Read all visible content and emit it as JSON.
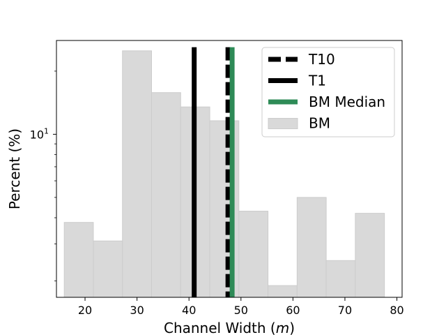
{
  "chart_data": {
    "type": "bar",
    "xlabel_prefix": "Channel Width (",
    "xlabel_unit": "m",
    "xlabel_suffix": ")",
    "ylabel": "Percent (%)",
    "yscale": "log",
    "xlim": [
      14.5,
      81
    ],
    "ylim": [
      1.67,
      28
    ],
    "x_ticks": [
      20,
      30,
      40,
      50,
      60,
      70,
      80
    ],
    "y_ticks": [
      {
        "value": 10,
        "base": "10",
        "exp": "1"
      }
    ],
    "histogram": {
      "name": "BM",
      "color": "#d9d9d9",
      "edge_color": "#cccccc",
      "bins": [
        {
          "x0": 16.0,
          "x1": 21.6,
          "value": 3.8
        },
        {
          "x0": 21.6,
          "x1": 27.2,
          "value": 3.1
        },
        {
          "x0": 27.2,
          "x1": 32.8,
          "value": 25.0
        },
        {
          "x0": 32.8,
          "x1": 38.4,
          "value": 15.8
        },
        {
          "x0": 38.4,
          "x1": 44.0,
          "value": 13.5
        },
        {
          "x0": 44.0,
          "x1": 49.6,
          "value": 11.6
        },
        {
          "x0": 49.6,
          "x1": 55.2,
          "value": 4.3
        },
        {
          "x0": 55.2,
          "x1": 60.8,
          "value": 1.9
        },
        {
          "x0": 60.8,
          "x1": 66.4,
          "value": 5.0
        },
        {
          "x0": 66.4,
          "x1": 72.0,
          "value": 2.5
        },
        {
          "x0": 72.0,
          "x1": 77.6,
          "value": 4.2
        }
      ]
    },
    "vlines": [
      {
        "name": "T10",
        "x": 47.5,
        "color": "#000000",
        "style": "dashed"
      },
      {
        "name": "T1",
        "x": 41.0,
        "color": "#000000",
        "style": "solid"
      },
      {
        "name": "BM Median",
        "x": 48.3,
        "color": "#2e8b57",
        "style": "solid"
      }
    ],
    "vline_top": 26.0,
    "legend": {
      "placement": "top-right",
      "entries": [
        {
          "label": "T10",
          "kind": "dashed",
          "color": "#000000"
        },
        {
          "label": "T1",
          "kind": "solid",
          "color": "#000000"
        },
        {
          "label": "BM Median",
          "kind": "solid",
          "color": "#2e8b57"
        },
        {
          "label": "BM",
          "kind": "patch",
          "color": "#d9d9d9"
        }
      ]
    },
    "grid": false
  }
}
